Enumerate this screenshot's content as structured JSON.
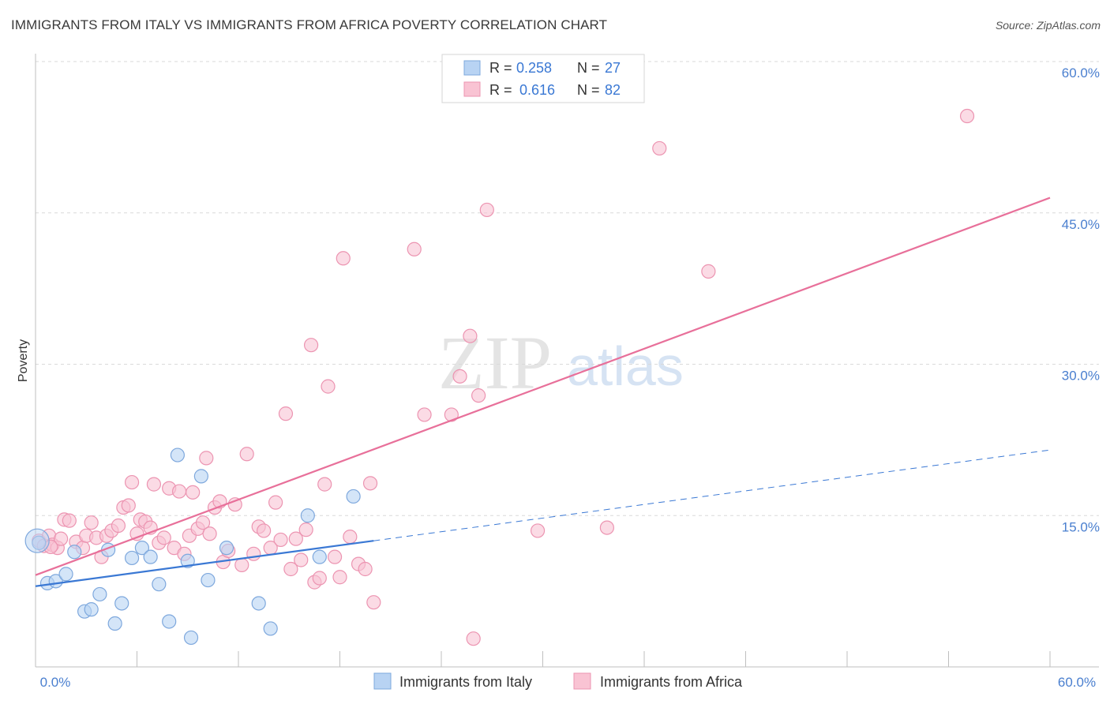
{
  "header": {
    "title": "IMMIGRANTS FROM ITALY VS IMMIGRANTS FROM AFRICA POVERTY CORRELATION CHART",
    "source": "Source: ZipAtlas.com"
  },
  "watermark": {
    "zip": "ZIP",
    "atlas": "atlas"
  },
  "legend_top": {
    "italy": {
      "r_label": "R = ",
      "r_value": "0.258",
      "n_label": "N = ",
      "n_value": "27"
    },
    "africa": {
      "r_label": "R = ",
      "r_value": "0.616",
      "n_label": "N = ",
      "n_value": "82"
    }
  },
  "colors": {
    "italy_fill": "#b8d3f3",
    "italy_stroke": "#7ea8dd",
    "italy_line": "#3a78d4",
    "africa_fill": "#f9c3d3",
    "africa_stroke": "#ec94b1",
    "africa_line": "#e8709a",
    "axis_text": "#4a7fcf",
    "grid": "#d9d9d9"
  },
  "chart_data": {
    "type": "scatter",
    "title": "IMMIGRANTS FROM ITALY VS IMMIGRANTS FROM AFRICA POVERTY CORRELATION CHART",
    "xlabel": "",
    "ylabel": "Poverty",
    "xlim": [
      0,
      60
    ],
    "ylim": [
      0,
      60
    ],
    "x_tick_labels": [
      "0.0%",
      "60.0%"
    ],
    "y_tick_labels": [
      "15.0%",
      "30.0%",
      "45.0%",
      "60.0%"
    ],
    "y_ticks": [
      15,
      30,
      45,
      60
    ],
    "legend": [
      "Immigrants from Italy",
      "Immigrants from Africa"
    ],
    "series": [
      {
        "name": "Immigrants from Italy",
        "r": 0.258,
        "n": 27,
        "trend": {
          "x_start": 0,
          "y_start": 8.0,
          "x_end": 60,
          "y_end": 21.5,
          "solid_until_x": 20
        },
        "points": [
          [
            0.2,
            12.3
          ],
          [
            0.7,
            8.3
          ],
          [
            1.2,
            8.5
          ],
          [
            1.8,
            9.2
          ],
          [
            2.3,
            11.4
          ],
          [
            2.9,
            5.5
          ],
          [
            3.3,
            5.7
          ],
          [
            3.8,
            7.2
          ],
          [
            4.3,
            11.6
          ],
          [
            4.7,
            4.3
          ],
          [
            5.1,
            6.3
          ],
          [
            5.7,
            10.8
          ],
          [
            6.3,
            11.8
          ],
          [
            6.8,
            10.9
          ],
          [
            7.3,
            8.2
          ],
          [
            7.9,
            4.5
          ],
          [
            8.4,
            21.0
          ],
          [
            9.0,
            10.5
          ],
          [
            9.2,
            2.9
          ],
          [
            9.8,
            18.9
          ],
          [
            10.2,
            8.6
          ],
          [
            11.3,
            11.8
          ],
          [
            13.2,
            6.3
          ],
          [
            13.9,
            3.8
          ],
          [
            16.1,
            15.0
          ],
          [
            16.8,
            10.9
          ],
          [
            18.8,
            16.9
          ]
        ]
      },
      {
        "name": "Immigrants from Africa",
        "r": 0.616,
        "n": 82,
        "trend": {
          "x_start": 0,
          "y_start": 9.1,
          "x_end": 60,
          "y_end": 46.5
        },
        "points": [
          [
            0.2,
            12.5
          ],
          [
            0.5,
            12.0
          ],
          [
            0.8,
            13.0
          ],
          [
            1.0,
            12.1
          ],
          [
            1.3,
            11.8
          ],
          [
            1.7,
            14.6
          ],
          [
            2.0,
            14.5
          ],
          [
            2.4,
            12.4
          ],
          [
            2.8,
            11.8
          ],
          [
            3.0,
            13.0
          ],
          [
            3.3,
            14.3
          ],
          [
            3.6,
            12.8
          ],
          [
            3.9,
            10.9
          ],
          [
            4.2,
            13.0
          ],
          [
            4.5,
            13.5
          ],
          [
            4.9,
            14.0
          ],
          [
            5.2,
            15.8
          ],
          [
            5.5,
            16.0
          ],
          [
            5.7,
            18.3
          ],
          [
            6.0,
            13.2
          ],
          [
            6.2,
            14.6
          ],
          [
            6.5,
            14.4
          ],
          [
            6.8,
            13.8
          ],
          [
            7.0,
            18.1
          ],
          [
            7.3,
            12.3
          ],
          [
            7.6,
            12.8
          ],
          [
            7.9,
            17.7
          ],
          [
            8.2,
            11.8
          ],
          [
            8.5,
            17.4
          ],
          [
            8.8,
            11.2
          ],
          [
            9.1,
            13.0
          ],
          [
            9.3,
            17.3
          ],
          [
            9.6,
            13.7
          ],
          [
            9.9,
            14.3
          ],
          [
            10.1,
            20.7
          ],
          [
            10.3,
            13.2
          ],
          [
            10.6,
            15.8
          ],
          [
            10.9,
            16.4
          ],
          [
            11.1,
            10.4
          ],
          [
            11.4,
            11.5
          ],
          [
            11.8,
            16.1
          ],
          [
            12.2,
            10.1
          ],
          [
            12.5,
            21.1
          ],
          [
            12.9,
            11.2
          ],
          [
            13.2,
            13.9
          ],
          [
            13.5,
            13.5
          ],
          [
            13.9,
            11.8
          ],
          [
            14.2,
            16.3
          ],
          [
            14.5,
            12.6
          ],
          [
            14.8,
            25.1
          ],
          [
            15.1,
            9.7
          ],
          [
            15.4,
            12.7
          ],
          [
            15.7,
            10.6
          ],
          [
            16.0,
            13.6
          ],
          [
            16.3,
            31.9
          ],
          [
            16.5,
            8.4
          ],
          [
            16.8,
            8.8
          ],
          [
            17.1,
            18.1
          ],
          [
            17.3,
            27.8
          ],
          [
            17.7,
            10.9
          ],
          [
            18.0,
            8.9
          ],
          [
            18.2,
            40.5
          ],
          [
            18.6,
            12.9
          ],
          [
            19.1,
            10.2
          ],
          [
            19.5,
            9.7
          ],
          [
            19.8,
            18.2
          ],
          [
            20.0,
            6.4
          ],
          [
            22.4,
            41.4
          ],
          [
            23.0,
            25.0
          ],
          [
            24.6,
            25.0
          ],
          [
            25.1,
            28.8
          ],
          [
            25.7,
            32.8
          ],
          [
            25.9,
            2.8
          ],
          [
            26.2,
            26.9
          ],
          [
            26.7,
            45.3
          ],
          [
            29.7,
            13.5
          ],
          [
            33.8,
            13.8
          ],
          [
            36.9,
            51.4
          ],
          [
            39.8,
            39.2
          ],
          [
            55.1,
            54.6
          ],
          [
            1.5,
            12.7
          ],
          [
            0.9,
            11.9
          ]
        ]
      }
    ]
  },
  "legend_bottom": {
    "italy": "Immigrants from Italy",
    "africa": "Immigrants from Africa"
  }
}
